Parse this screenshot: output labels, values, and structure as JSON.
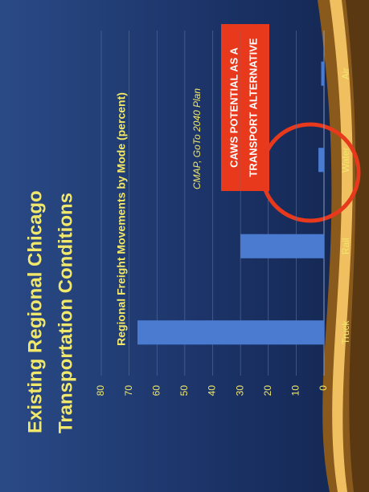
{
  "chart_data": {
    "type": "bar",
    "slide_title": [
      "Existing Regional Chicago",
      "Transportation Conditions"
    ],
    "title": "Regional Freight Movements by Mode (percent)",
    "source": "CMAP, GoTo 2040 Plan",
    "callout": [
      "CAWS POTENTIAL AS A",
      "TRANSPORT ALTERNATIVE"
    ],
    "categories": [
      "Truck",
      "Rail",
      "Water",
      "Air"
    ],
    "values": [
      67,
      30,
      2,
      1
    ],
    "color": "#4a7bd0",
    "ylim": [
      0,
      80
    ],
    "yticks": [
      0,
      10,
      20,
      30,
      40,
      50,
      60,
      70,
      80
    ],
    "grid": true
  }
}
